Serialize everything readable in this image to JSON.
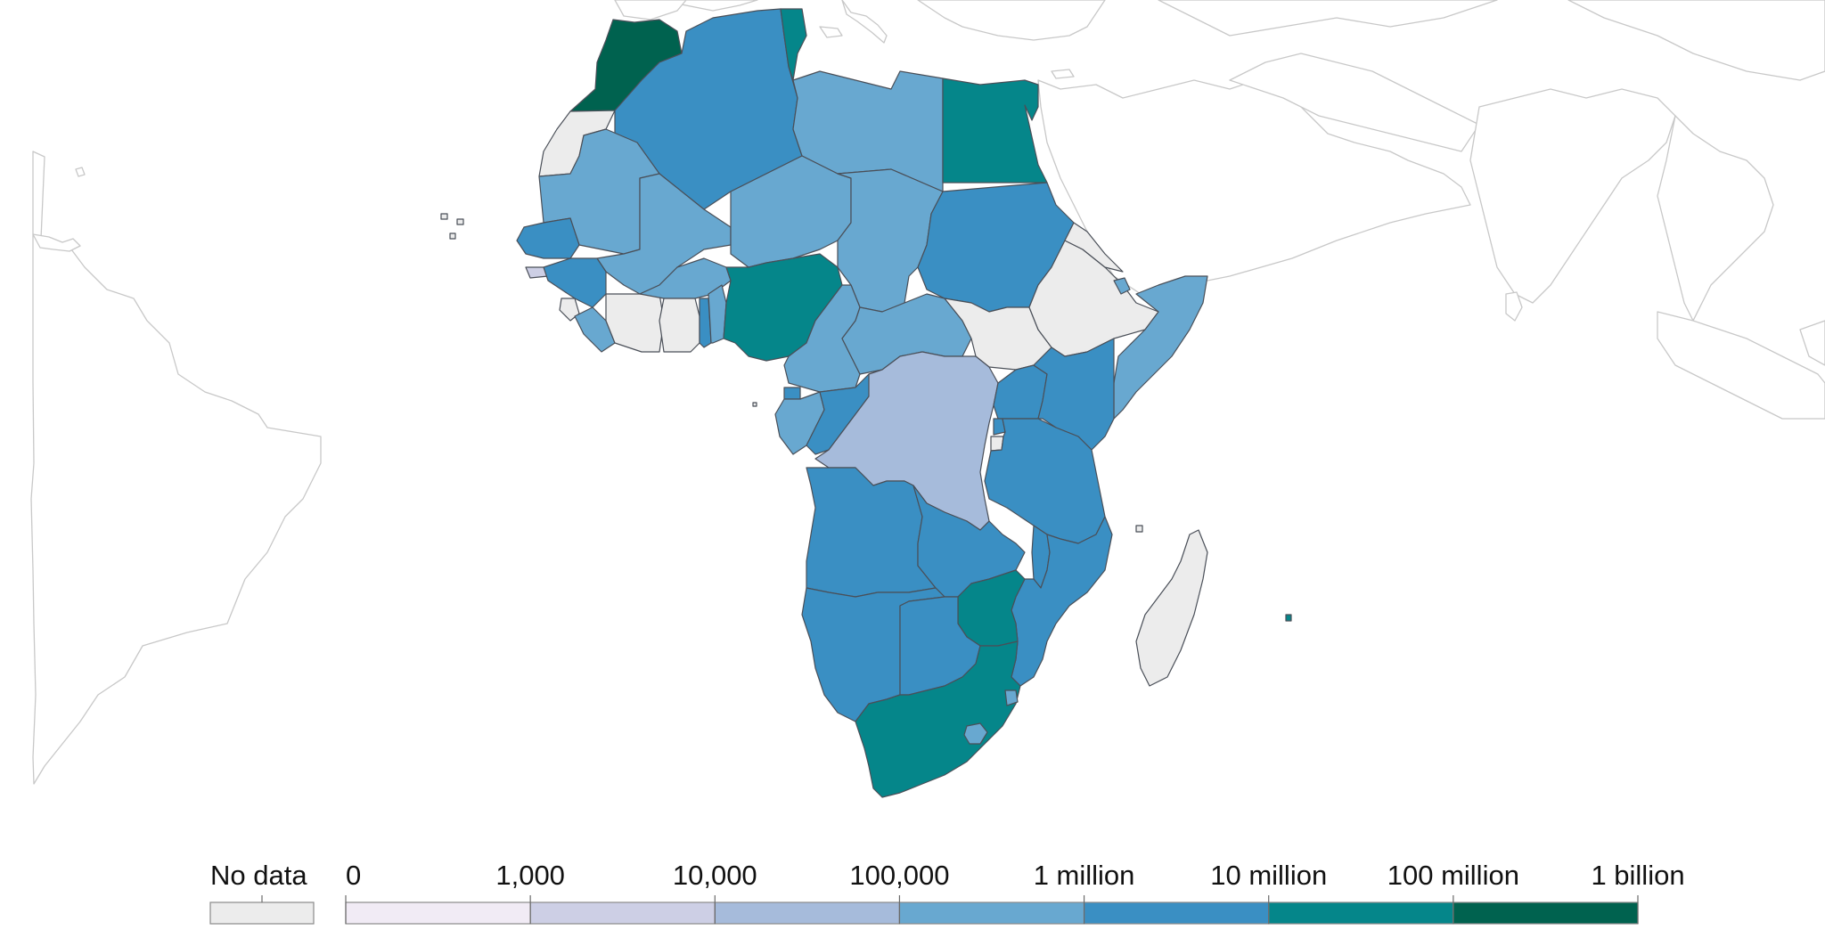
{
  "legend": {
    "no_data_label": "No data",
    "thresholds": [
      "0",
      "1,000",
      "10,000",
      "100,000",
      "1 million",
      "10 million",
      "100 million",
      "1 billion"
    ],
    "no_data_color": "#ececec",
    "bin_colors": [
      "#f1ebf5",
      "#cdcfe5",
      "#a6bbdb",
      "#68a8d0",
      "#3a8fc3",
      "#05868a",
      "#00624f"
    ]
  },
  "countries": [
    {
      "name": "Morocco",
      "bin": 6
    },
    {
      "name": "Western Sahara",
      "bin": -1
    },
    {
      "name": "Algeria",
      "bin": 4
    },
    {
      "name": "Tunisia",
      "bin": 5
    },
    {
      "name": "Libya",
      "bin": 3
    },
    {
      "name": "Egypt",
      "bin": 5
    },
    {
      "name": "Mauritania",
      "bin": 3
    },
    {
      "name": "Mali",
      "bin": 3
    },
    {
      "name": "Niger",
      "bin": 3
    },
    {
      "name": "Chad",
      "bin": 3
    },
    {
      "name": "Sudan",
      "bin": 4
    },
    {
      "name": "Senegal",
      "bin": 4
    },
    {
      "name": "Guinea-Bissau",
      "bin": 1
    },
    {
      "name": "Guinea",
      "bin": 4
    },
    {
      "name": "Sierra Leone",
      "bin": -1
    },
    {
      "name": "Liberia",
      "bin": 3
    },
    {
      "name": "Cote d'Ivoire",
      "bin": -1
    },
    {
      "name": "Burkina Faso",
      "bin": 3
    },
    {
      "name": "Ghana",
      "bin": -1
    },
    {
      "name": "Togo",
      "bin": 4
    },
    {
      "name": "Benin",
      "bin": 3
    },
    {
      "name": "Nigeria",
      "bin": 5
    },
    {
      "name": "Cameroon",
      "bin": 3
    },
    {
      "name": "Central African Republic",
      "bin": 3
    },
    {
      "name": "South Sudan",
      "bin": -1
    },
    {
      "name": "Ethiopia",
      "bin": -1
    },
    {
      "name": "Eritrea",
      "bin": -1
    },
    {
      "name": "Djibouti",
      "bin": 3
    },
    {
      "name": "Somalia",
      "bin": 3
    },
    {
      "name": "Equatorial Guinea",
      "bin": 4
    },
    {
      "name": "Gabon",
      "bin": 3
    },
    {
      "name": "Republic of the Congo",
      "bin": 4
    },
    {
      "name": "Democratic Republic of the Congo",
      "bin": 2
    },
    {
      "name": "Uganda",
      "bin": 4
    },
    {
      "name": "Kenya",
      "bin": 4
    },
    {
      "name": "Rwanda",
      "bin": 4
    },
    {
      "name": "Burundi",
      "bin": -1
    },
    {
      "name": "Tanzania",
      "bin": 4
    },
    {
      "name": "Angola",
      "bin": 4
    },
    {
      "name": "Zambia",
      "bin": 4
    },
    {
      "name": "Malawi",
      "bin": 4
    },
    {
      "name": "Mozambique",
      "bin": 4
    },
    {
      "name": "Zimbabwe",
      "bin": 5
    },
    {
      "name": "Namibia",
      "bin": 4
    },
    {
      "name": "Botswana",
      "bin": 4
    },
    {
      "name": "South Africa",
      "bin": 5
    },
    {
      "name": "Lesotho",
      "bin": 3
    },
    {
      "name": "Eswatini",
      "bin": 3
    },
    {
      "name": "Madagascar",
      "bin": -1
    },
    {
      "name": "Mauritius",
      "bin": 5
    }
  ]
}
